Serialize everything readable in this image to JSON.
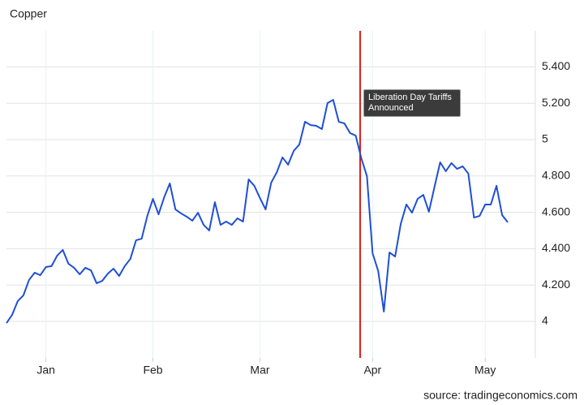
{
  "chart_data": {
    "type": "line",
    "title": "Copper",
    "source": "source: tradingeconomics.com",
    "annotation": [
      "Liberation Day Tariffs",
      "Announced"
    ],
    "color": "#1f4fd6",
    "grid": true,
    "ylim": [
      3.8,
      5.6
    ],
    "yticks": [
      4,
      {
        "value": 4.2,
        "label": "4.200"
      },
      {
        "value": 4.4,
        "label": "4.400"
      },
      {
        "value": 4.6,
        "label": "4.600"
      },
      {
        "value": 4.8,
        "label": "4.800"
      },
      5,
      {
        "value": 5.2,
        "label": "5.200"
      },
      {
        "value": 5.4,
        "label": "5.400"
      }
    ],
    "categories": [
      null,
      null,
      null,
      null,
      null,
      null,
      null,
      "Jan",
      null,
      null,
      null,
      null,
      null,
      null,
      null,
      null,
      null,
      null,
      null,
      null,
      null,
      null,
      null,
      null,
      null,
      null,
      "Feb",
      null,
      null,
      null,
      null,
      null,
      null,
      null,
      null,
      null,
      null,
      null,
      null,
      null,
      null,
      null,
      null,
      null,
      null,
      "Mar",
      null,
      null,
      null,
      null,
      null,
      null,
      null,
      null,
      null,
      null,
      null,
      null,
      null,
      null,
      null,
      null,
      null,
      null,
      null,
      "Apr",
      null,
      null,
      null,
      null,
      null,
      null,
      null,
      null,
      null,
      null,
      null,
      null,
      null,
      null,
      null,
      null,
      null,
      null,
      null,
      "May",
      null,
      null,
      null,
      null
    ],
    "values": [
      3.991,
      4.036,
      4.112,
      4.143,
      4.228,
      4.268,
      4.254,
      4.299,
      4.304,
      4.362,
      4.393,
      4.317,
      4.295,
      4.259,
      4.295,
      4.281,
      4.21,
      4.223,
      4.263,
      4.29,
      4.25,
      4.304,
      4.344,
      4.446,
      4.455,
      4.58,
      4.674,
      4.589,
      4.683,
      4.759,
      4.616,
      4.594,
      4.576,
      4.554,
      4.598,
      4.531,
      4.5,
      4.656,
      4.531,
      4.549,
      4.531,
      4.567,
      4.549,
      4.781,
      4.746,
      4.679,
      4.616,
      4.763,
      4.821,
      4.902,
      4.862,
      4.938,
      4.973,
      5.098,
      5.08,
      5.076,
      5.058,
      5.201,
      5.219,
      5.098,
      5.089,
      5.036,
      5.022,
      4.897,
      4.799,
      4.375,
      4.277,
      4.054,
      4.379,
      4.357,
      4.536,
      4.643,
      4.598,
      4.674,
      4.696,
      4.603,
      4.741,
      4.875,
      4.826,
      4.871,
      4.839,
      4.853,
      4.813,
      4.571,
      4.58,
      4.643,
      4.643,
      4.746,
      4.585,
      4.545
    ]
  }
}
